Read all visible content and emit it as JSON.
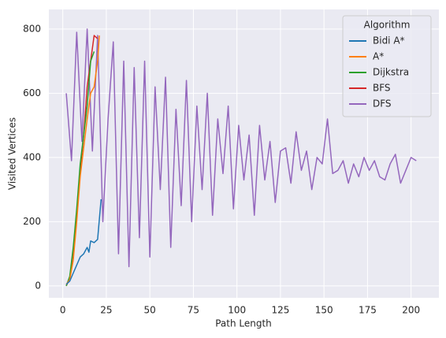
{
  "chart_data": {
    "type": "line",
    "xlabel": "Path Length",
    "ylabel": "Visited Vertices",
    "legend_title": "Algorithm",
    "legend": "upper right",
    "grid": true,
    "xlim": [
      -8,
      216
    ],
    "ylim": [
      -37,
      861
    ],
    "xticks": [
      0,
      25,
      50,
      75,
      100,
      125,
      150,
      175,
      200
    ],
    "yticks": [
      0,
      200,
      400,
      600,
      800
    ],
    "series": [
      {
        "name": "Bidi A*",
        "color": "#1f77b4",
        "x": [
          2,
          4,
          6,
          8,
          10,
          12,
          14,
          15,
          16,
          18,
          20,
          22
        ],
        "values": [
          5,
          15,
          40,
          65,
          90,
          100,
          120,
          105,
          140,
          135,
          145,
          270
        ]
      },
      {
        "name": "A*",
        "color": "#ff7f0e",
        "x": [
          2,
          4,
          6,
          8,
          10,
          12,
          14,
          16,
          18,
          20,
          21
        ],
        "values": [
          5,
          20,
          80,
          200,
          340,
          430,
          520,
          600,
          620,
          700,
          780
        ]
      },
      {
        "name": "Dijkstra",
        "color": "#2ca02c",
        "x": [
          2,
          4,
          6,
          8,
          10,
          12,
          14,
          16,
          18
        ],
        "values": [
          0,
          30,
          120,
          240,
          380,
          470,
          560,
          700,
          730
        ]
      },
      {
        "name": "BFS",
        "color": "#d62728",
        "x": [
          2,
          4,
          6,
          8,
          10,
          12,
          14,
          16,
          18,
          20
        ],
        "values": [
          0,
          25,
          110,
          230,
          360,
          470,
          620,
          700,
          780,
          770
        ]
      },
      {
        "name": "DFS",
        "color": "#9467bd",
        "x": [
          2,
          5,
          8,
          11,
          14,
          17,
          20,
          23,
          26,
          29,
          32,
          35,
          38,
          41,
          44,
          47,
          50,
          53,
          56,
          59,
          62,
          65,
          68,
          71,
          74,
          77,
          80,
          83,
          86,
          89,
          92,
          95,
          98,
          101,
          104,
          107,
          110,
          113,
          116,
          119,
          122,
          125,
          128,
          131,
          134,
          137,
          140,
          143,
          146,
          149,
          152,
          155,
          158,
          161,
          164,
          167,
          170,
          173,
          176,
          179,
          182,
          185,
          188,
          191,
          194,
          197,
          200,
          203
        ],
        "values": [
          600,
          390,
          790,
          450,
          800,
          420,
          780,
          200,
          520,
          760,
          100,
          700,
          60,
          680,
          150,
          700,
          90,
          620,
          300,
          650,
          120,
          550,
          250,
          640,
          200,
          560,
          300,
          600,
          220,
          520,
          350,
          560,
          240,
          500,
          330,
          470,
          220,
          500,
          330,
          450,
          260,
          420,
          430,
          320,
          480,
          360,
          420,
          300,
          400,
          380,
          520,
          350,
          360,
          390,
          320,
          380,
          340,
          400,
          360,
          390,
          340,
          330,
          380,
          410,
          320,
          360,
          400,
          390
        ]
      }
    ]
  }
}
